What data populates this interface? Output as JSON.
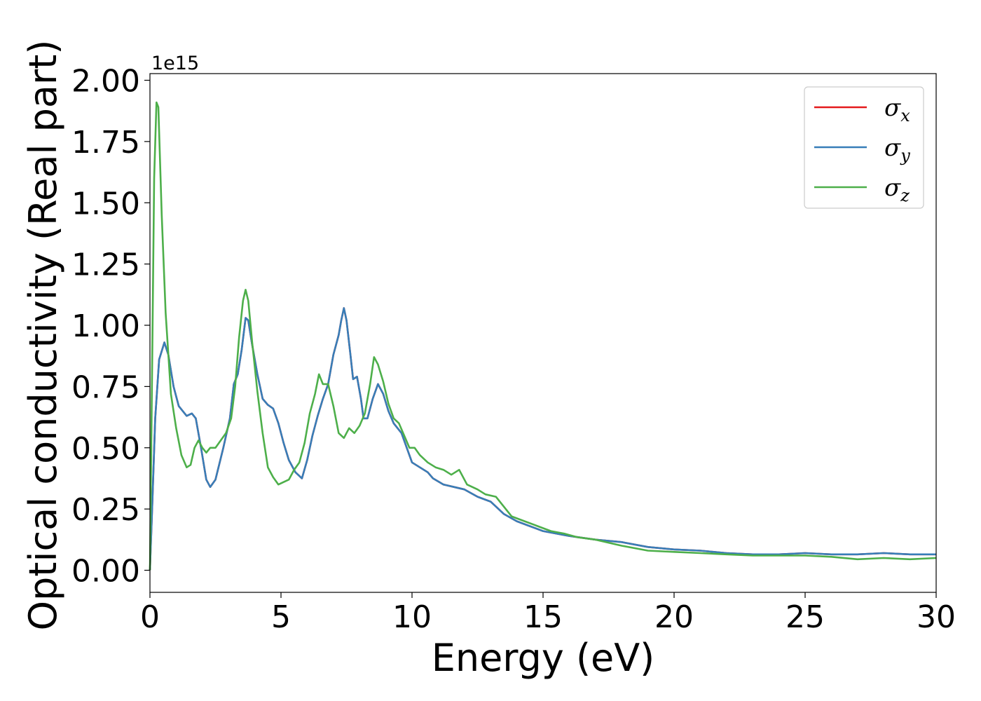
{
  "chart_data": {
    "type": "line",
    "xlabel": "Energy (eV)",
    "ylabel": "Optical conductivity (Real part)",
    "y_offset_label": "1e15",
    "xlim": [
      0,
      30
    ],
    "ylim": [
      -0.1,
      2.02
    ],
    "xticks": [
      0,
      5,
      10,
      15,
      20,
      25,
      30
    ],
    "xtick_labels": [
      "0",
      "5",
      "10",
      "15",
      "20",
      "25",
      "30"
    ],
    "yticks": [
      0.0,
      0.25,
      0.5,
      0.75,
      1.0,
      1.25,
      1.5,
      1.75,
      2.0
    ],
    "ytick_labels": [
      "0.00",
      "0.25",
      "0.50",
      "0.75",
      "1.00",
      "1.25",
      "1.50",
      "1.75",
      "2.00"
    ],
    "grid": false,
    "legend_position": "top-right",
    "series": [
      {
        "name": "σx",
        "symbol": "σ",
        "subscript": "x",
        "color": "#e41a1c",
        "points": [
          [
            0,
            0
          ],
          [
            0.1,
            0.3
          ],
          [
            0.2,
            0.62
          ],
          [
            0.35,
            0.86
          ],
          [
            0.55,
            0.93
          ],
          [
            0.7,
            0.88
          ],
          [
            0.9,
            0.75
          ],
          [
            1.1,
            0.67
          ],
          [
            1.4,
            0.63
          ],
          [
            1.6,
            0.64
          ],
          [
            1.75,
            0.62
          ],
          [
            1.95,
            0.5
          ],
          [
            2.15,
            0.37
          ],
          [
            2.3,
            0.34
          ],
          [
            2.5,
            0.37
          ],
          [
            2.8,
            0.5
          ],
          [
            3.05,
            0.62
          ],
          [
            3.2,
            0.76
          ],
          [
            3.35,
            0.8
          ],
          [
            3.5,
            0.9
          ],
          [
            3.65,
            1.03
          ],
          [
            3.75,
            1.02
          ],
          [
            3.9,
            0.92
          ],
          [
            4.1,
            0.8
          ],
          [
            4.3,
            0.7
          ],
          [
            4.5,
            0.675
          ],
          [
            4.7,
            0.66
          ],
          [
            4.9,
            0.6
          ],
          [
            5.1,
            0.52
          ],
          [
            5.3,
            0.45
          ],
          [
            5.55,
            0.4
          ],
          [
            5.8,
            0.375
          ],
          [
            6.0,
            0.45
          ],
          [
            6.2,
            0.55
          ],
          [
            6.4,
            0.63
          ],
          [
            6.6,
            0.7
          ],
          [
            6.8,
            0.76
          ],
          [
            7.0,
            0.88
          ],
          [
            7.2,
            0.96
          ],
          [
            7.3,
            1.02
          ],
          [
            7.4,
            1.07
          ],
          [
            7.5,
            1.02
          ],
          [
            7.65,
            0.88
          ],
          [
            7.75,
            0.78
          ],
          [
            7.9,
            0.79
          ],
          [
            8.05,
            0.7
          ],
          [
            8.15,
            0.62
          ],
          [
            8.3,
            0.62
          ],
          [
            8.5,
            0.7
          ],
          [
            8.7,
            0.76
          ],
          [
            8.9,
            0.72
          ],
          [
            9.1,
            0.65
          ],
          [
            9.3,
            0.6
          ],
          [
            9.6,
            0.56
          ],
          [
            9.8,
            0.5
          ],
          [
            10.0,
            0.44
          ],
          [
            10.3,
            0.42
          ],
          [
            10.6,
            0.4
          ],
          [
            10.8,
            0.375
          ],
          [
            11.2,
            0.35
          ],
          [
            11.6,
            0.34
          ],
          [
            12.0,
            0.33
          ],
          [
            12.5,
            0.3
          ],
          [
            13.0,
            0.28
          ],
          [
            13.5,
            0.23
          ],
          [
            14.0,
            0.2
          ],
          [
            14.5,
            0.18
          ],
          [
            15.0,
            0.16
          ],
          [
            15.5,
            0.15
          ],
          [
            16.0,
            0.14
          ],
          [
            17.0,
            0.125
          ],
          [
            18.0,
            0.115
          ],
          [
            19.0,
            0.095
          ],
          [
            20.0,
            0.085
          ],
          [
            21.0,
            0.08
          ],
          [
            22.0,
            0.07
          ],
          [
            23.0,
            0.065
          ],
          [
            24.0,
            0.065
          ],
          [
            25.0,
            0.07
          ],
          [
            26.0,
            0.065
          ],
          [
            27.0,
            0.065
          ],
          [
            28.0,
            0.07
          ],
          [
            29.0,
            0.065
          ],
          [
            30.0,
            0.065
          ]
        ]
      },
      {
        "name": "σy",
        "symbol": "σ",
        "subscript": "y",
        "color": "#377eb8",
        "points": [
          [
            0,
            0
          ],
          [
            0.1,
            0.3
          ],
          [
            0.2,
            0.62
          ],
          [
            0.35,
            0.86
          ],
          [
            0.55,
            0.93
          ],
          [
            0.7,
            0.88
          ],
          [
            0.9,
            0.75
          ],
          [
            1.1,
            0.67
          ],
          [
            1.4,
            0.63
          ],
          [
            1.6,
            0.64
          ],
          [
            1.75,
            0.62
          ],
          [
            1.95,
            0.5
          ],
          [
            2.15,
            0.37
          ],
          [
            2.3,
            0.34
          ],
          [
            2.5,
            0.37
          ],
          [
            2.8,
            0.5
          ],
          [
            3.05,
            0.62
          ],
          [
            3.2,
            0.76
          ],
          [
            3.35,
            0.8
          ],
          [
            3.5,
            0.9
          ],
          [
            3.65,
            1.03
          ],
          [
            3.75,
            1.02
          ],
          [
            3.9,
            0.92
          ],
          [
            4.1,
            0.8
          ],
          [
            4.3,
            0.7
          ],
          [
            4.5,
            0.675
          ],
          [
            4.7,
            0.66
          ],
          [
            4.9,
            0.6
          ],
          [
            5.1,
            0.52
          ],
          [
            5.3,
            0.45
          ],
          [
            5.55,
            0.4
          ],
          [
            5.8,
            0.375
          ],
          [
            6.0,
            0.45
          ],
          [
            6.2,
            0.55
          ],
          [
            6.4,
            0.63
          ],
          [
            6.6,
            0.7
          ],
          [
            6.8,
            0.76
          ],
          [
            7.0,
            0.88
          ],
          [
            7.2,
            0.96
          ],
          [
            7.3,
            1.02
          ],
          [
            7.4,
            1.07
          ],
          [
            7.5,
            1.02
          ],
          [
            7.65,
            0.88
          ],
          [
            7.75,
            0.78
          ],
          [
            7.9,
            0.79
          ],
          [
            8.05,
            0.7
          ],
          [
            8.15,
            0.62
          ],
          [
            8.3,
            0.62
          ],
          [
            8.5,
            0.7
          ],
          [
            8.7,
            0.76
          ],
          [
            8.9,
            0.72
          ],
          [
            9.1,
            0.65
          ],
          [
            9.3,
            0.6
          ],
          [
            9.6,
            0.56
          ],
          [
            9.8,
            0.5
          ],
          [
            10.0,
            0.44
          ],
          [
            10.3,
            0.42
          ],
          [
            10.6,
            0.4
          ],
          [
            10.8,
            0.375
          ],
          [
            11.2,
            0.35
          ],
          [
            11.6,
            0.34
          ],
          [
            12.0,
            0.33
          ],
          [
            12.5,
            0.3
          ],
          [
            13.0,
            0.28
          ],
          [
            13.5,
            0.23
          ],
          [
            14.0,
            0.2
          ],
          [
            14.5,
            0.18
          ],
          [
            15.0,
            0.16
          ],
          [
            15.5,
            0.15
          ],
          [
            16.0,
            0.14
          ],
          [
            17.0,
            0.125
          ],
          [
            18.0,
            0.115
          ],
          [
            19.0,
            0.095
          ],
          [
            20.0,
            0.085
          ],
          [
            21.0,
            0.08
          ],
          [
            22.0,
            0.07
          ],
          [
            23.0,
            0.065
          ],
          [
            24.0,
            0.065
          ],
          [
            25.0,
            0.07
          ],
          [
            26.0,
            0.065
          ],
          [
            27.0,
            0.065
          ],
          [
            28.0,
            0.07
          ],
          [
            29.0,
            0.065
          ],
          [
            30.0,
            0.065
          ]
        ]
      },
      {
        "name": "σz",
        "symbol": "σ",
        "subscript": "z",
        "color": "#4daf4a",
        "points": [
          [
            0,
            0
          ],
          [
            0.08,
            0.8
          ],
          [
            0.16,
            1.6
          ],
          [
            0.25,
            1.91
          ],
          [
            0.32,
            1.89
          ],
          [
            0.45,
            1.45
          ],
          [
            0.6,
            1.05
          ],
          [
            0.8,
            0.72
          ],
          [
            1.0,
            0.58
          ],
          [
            1.2,
            0.47
          ],
          [
            1.4,
            0.42
          ],
          [
            1.55,
            0.43
          ],
          [
            1.7,
            0.5
          ],
          [
            1.85,
            0.53
          ],
          [
            2.0,
            0.5
          ],
          [
            2.15,
            0.48
          ],
          [
            2.3,
            0.5
          ],
          [
            2.5,
            0.5
          ],
          [
            2.7,
            0.53
          ],
          [
            2.9,
            0.56
          ],
          [
            3.1,
            0.62
          ],
          [
            3.25,
            0.75
          ],
          [
            3.4,
            0.95
          ],
          [
            3.55,
            1.1
          ],
          [
            3.65,
            1.145
          ],
          [
            3.75,
            1.1
          ],
          [
            3.9,
            0.93
          ],
          [
            4.1,
            0.73
          ],
          [
            4.3,
            0.56
          ],
          [
            4.5,
            0.42
          ],
          [
            4.7,
            0.38
          ],
          [
            4.9,
            0.35
          ],
          [
            5.1,
            0.36
          ],
          [
            5.3,
            0.37
          ],
          [
            5.5,
            0.41
          ],
          [
            5.7,
            0.44
          ],
          [
            5.9,
            0.52
          ],
          [
            6.1,
            0.64
          ],
          [
            6.3,
            0.72
          ],
          [
            6.45,
            0.8
          ],
          [
            6.6,
            0.76
          ],
          [
            6.8,
            0.76
          ],
          [
            7.0,
            0.67
          ],
          [
            7.2,
            0.56
          ],
          [
            7.4,
            0.54
          ],
          [
            7.6,
            0.58
          ],
          [
            7.8,
            0.56
          ],
          [
            8.0,
            0.59
          ],
          [
            8.2,
            0.64
          ],
          [
            8.4,
            0.76
          ],
          [
            8.55,
            0.87
          ],
          [
            8.7,
            0.84
          ],
          [
            8.9,
            0.77
          ],
          [
            9.1,
            0.68
          ],
          [
            9.3,
            0.62
          ],
          [
            9.5,
            0.6
          ],
          [
            9.7,
            0.55
          ],
          [
            9.9,
            0.5
          ],
          [
            10.1,
            0.5
          ],
          [
            10.3,
            0.47
          ],
          [
            10.6,
            0.44
          ],
          [
            10.9,
            0.42
          ],
          [
            11.2,
            0.41
          ],
          [
            11.5,
            0.39
          ],
          [
            11.8,
            0.41
          ],
          [
            12.1,
            0.35
          ],
          [
            12.5,
            0.33
          ],
          [
            12.8,
            0.31
          ],
          [
            13.2,
            0.3
          ],
          [
            13.5,
            0.26
          ],
          [
            13.8,
            0.22
          ],
          [
            14.3,
            0.2
          ],
          [
            14.8,
            0.18
          ],
          [
            15.3,
            0.16
          ],
          [
            15.8,
            0.15
          ],
          [
            16.3,
            0.135
          ],
          [
            17.0,
            0.125
          ],
          [
            18.0,
            0.1
          ],
          [
            19.0,
            0.08
          ],
          [
            20.0,
            0.075
          ],
          [
            21.0,
            0.07
          ],
          [
            22.0,
            0.065
          ],
          [
            23.0,
            0.06
          ],
          [
            24.0,
            0.06
          ],
          [
            25.0,
            0.06
          ],
          [
            26.0,
            0.055
          ],
          [
            27.0,
            0.045
          ],
          [
            28.0,
            0.05
          ],
          [
            29.0,
            0.045
          ],
          [
            30.0,
            0.05
          ]
        ]
      }
    ]
  }
}
